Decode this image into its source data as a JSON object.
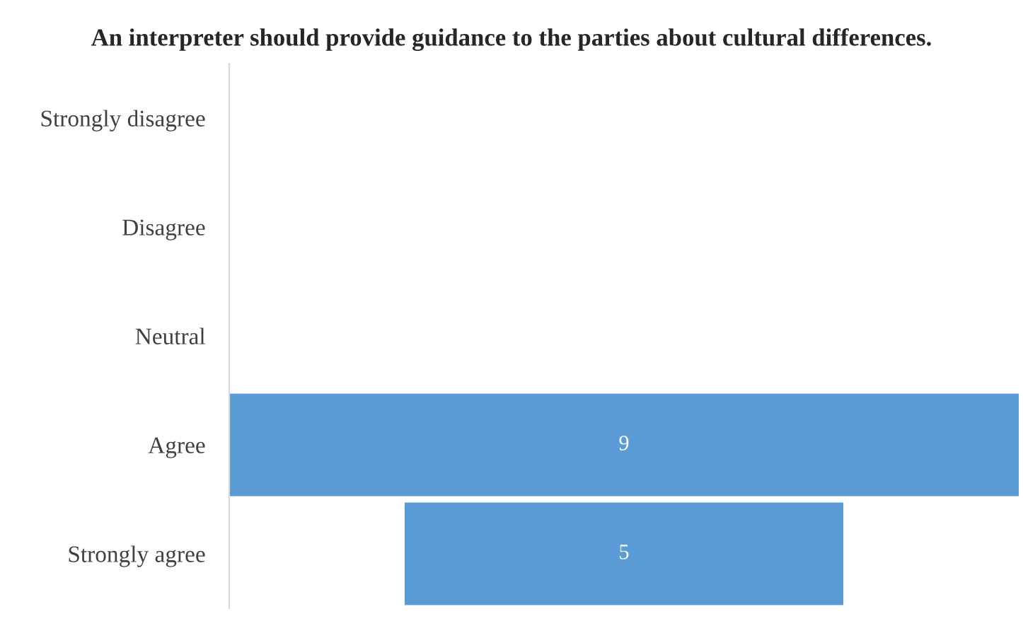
{
  "chart_data": {
    "type": "other",
    "title": "An interpreter should provide guidance to the parties about cultural differences.",
    "categories": [
      "Strongly disagree",
      "Disagree",
      "Neutral",
      "Agree",
      "Strongly agree"
    ],
    "values": [
      null,
      null,
      null,
      9,
      5
    ],
    "color": "#5b9bd5",
    "data_labels": true
  }
}
